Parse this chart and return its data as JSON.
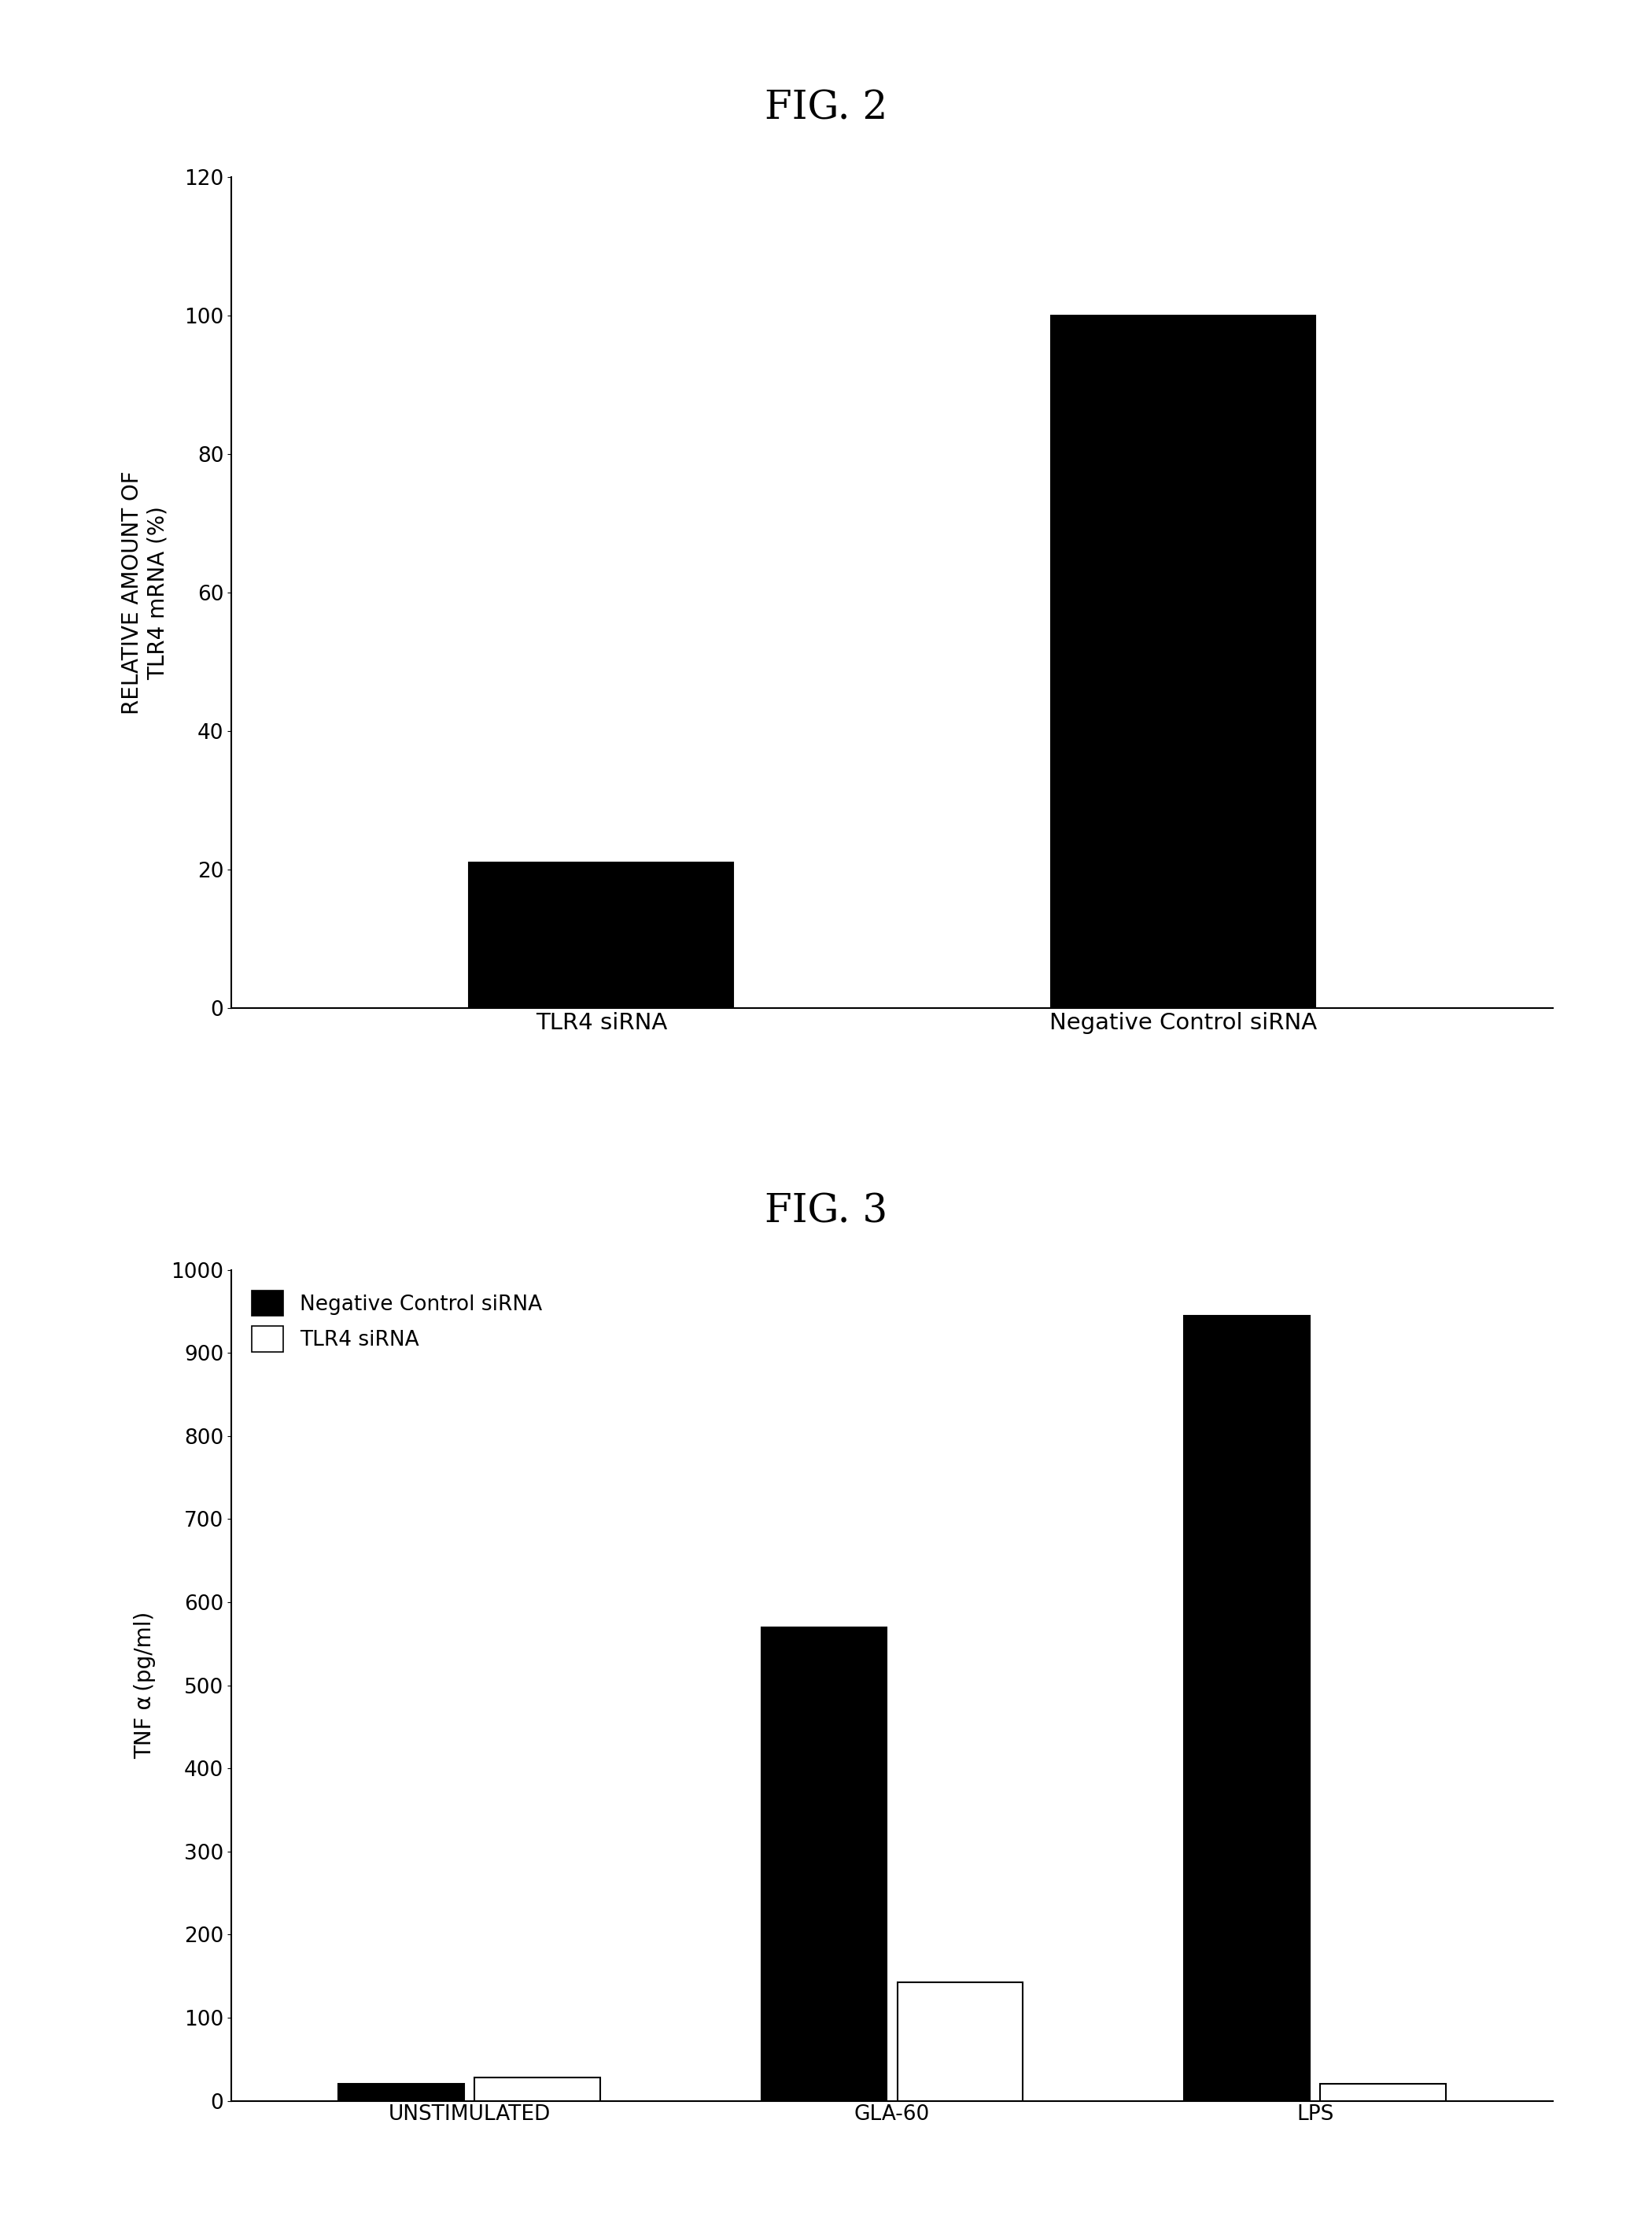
{
  "fig2_title": "FIG. 2",
  "fig2_categories": [
    "TLR4 siRNA",
    "Negative Control siRNA"
  ],
  "fig2_values": [
    21,
    100
  ],
  "fig2_ylabel_line1": "RELATIVE AMOUNT OF",
  "fig2_ylabel_line2": "TLR4 mRNA (%)",
  "fig2_ylim": [
    0,
    120
  ],
  "fig2_yticks": [
    0,
    20,
    40,
    60,
    80,
    100,
    120
  ],
  "fig2_bar_color": "#000000",
  "fig3_title": "FIG. 3",
  "fig3_categories": [
    "UNSTIMULATED",
    "GLA-60",
    "LPS"
  ],
  "fig3_neg_ctrl": [
    20,
    570,
    945
  ],
  "fig3_tlr4": [
    28,
    143,
    20
  ],
  "fig3_ylabel": "TNF α (pg/ml)",
  "fig3_ylim": [
    0,
    1000
  ],
  "fig3_yticks": [
    0,
    100,
    200,
    300,
    400,
    500,
    600,
    700,
    800,
    900,
    1000
  ],
  "fig3_neg_color": "#000000",
  "fig3_tlr4_color": "#ffffff",
  "fig3_legend_neg": "Negative Control siRNA",
  "fig3_legend_tlr4": "TLR4 siRNA",
  "background_color": "#ffffff",
  "bar_edge_color": "#000000",
  "title_fontsize": 36,
  "axis_label_fontsize": 20,
  "tick_fontsize": 19,
  "legend_fontsize": 19
}
